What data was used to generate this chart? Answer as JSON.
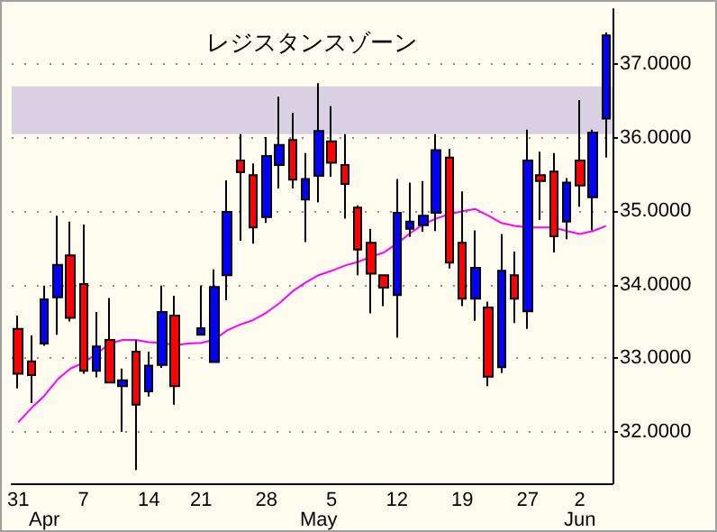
{
  "chart_data": {
    "type": "candlestick",
    "categories": [
      "31",
      null,
      "\nApr",
      null,
      null,
      "7",
      null,
      null,
      null,
      null,
      "14",
      null,
      null,
      null,
      "21",
      null,
      null,
      null,
      null,
      "28",
      null,
      null,
      null,
      "\nMay",
      "5",
      null,
      null,
      null,
      null,
      "12",
      null,
      null,
      null,
      null,
      "19",
      null,
      null,
      null,
      null,
      "27",
      null,
      null,
      null,
      "2\nJun",
      null,
      null
    ],
    "ohlc": [
      [
        33.4,
        33.58,
        32.59,
        32.79
      ],
      [
        32.96,
        33.31,
        32.39,
        32.77
      ],
      [
        33.2,
        33.99,
        33.17,
        33.8
      ],
      [
        33.83,
        34.94,
        33.32,
        34.27
      ],
      [
        34.4,
        34.86,
        33.5,
        33.55
      ],
      [
        34.01,
        34.82,
        32.79,
        32.83
      ],
      [
        32.83,
        33.63,
        32.74,
        33.16
      ],
      [
        33.25,
        33.82,
        32.67,
        32.67
      ],
      [
        32.62,
        32.86,
        32.0,
        32.7
      ],
      [
        33.09,
        33.25,
        31.48,
        32.37
      ],
      [
        32.55,
        33.09,
        32.48,
        32.9
      ],
      [
        32.91,
        33.99,
        32.87,
        33.63
      ],
      [
        33.58,
        33.85,
        32.37,
        32.62
      ],
      null,
      [
        33.32,
        33.99,
        33.32,
        33.41
      ],
      [
        32.95,
        34.21,
        32.95,
        33.97
      ],
      [
        34.13,
        35.42,
        33.79,
        34.99
      ],
      [
        35.69,
        36.05,
        34.6,
        35.53
      ],
      [
        35.49,
        35.65,
        34.56,
        34.78
      ],
      [
        34.92,
        36.01,
        34.84,
        35.75
      ],
      [
        35.63,
        36.56,
        35.31,
        35.9
      ],
      [
        35.97,
        36.34,
        35.31,
        35.43
      ],
      [
        35.16,
        35.79,
        34.58,
        35.44
      ],
      [
        35.48,
        36.74,
        35.12,
        36.09
      ],
      [
        35.95,
        36.43,
        35.47,
        35.66
      ],
      [
        35.63,
        36.05,
        34.9,
        35.37
      ],
      [
        35.05,
        35.08,
        34.13,
        34.48
      ],
      [
        34.57,
        34.76,
        33.61,
        34.15
      ],
      [
        34.13,
        34.13,
        33.71,
        33.96
      ],
      [
        33.86,
        35.44,
        33.28,
        34.98
      ],
      [
        34.76,
        35.39,
        34.65,
        34.86
      ],
      [
        34.81,
        35.41,
        34.72,
        34.94
      ],
      [
        34.98,
        36.05,
        34.73,
        35.83
      ],
      [
        35.73,
        35.85,
        34.22,
        34.3
      ],
      [
        34.57,
        35.27,
        33.71,
        33.81
      ],
      [
        33.81,
        34.74,
        33.51,
        34.23
      ],
      [
        33.69,
        33.77,
        32.62,
        32.75
      ],
      [
        32.88,
        34.69,
        32.8,
        34.19
      ],
      [
        34.13,
        34.45,
        33.48,
        33.81
      ],
      [
        33.64,
        36.11,
        33.4,
        35.69
      ],
      [
        35.49,
        35.81,
        34.88,
        35.41
      ],
      [
        35.54,
        35.79,
        34.44,
        34.66
      ],
      [
        34.86,
        35.45,
        34.62,
        35.39
      ],
      [
        35.69,
        36.51,
        35.06,
        35.35
      ],
      [
        35.19,
        36.11,
        34.74,
        36.07
      ],
      [
        36.26,
        37.43,
        35.73,
        37.39
      ]
    ],
    "colors": [
      "#ff0000",
      "#ff0000",
      "#0000ff",
      "#0000ff",
      "#ff0000",
      "#ff0000",
      "#0000ff",
      "#ff0000",
      "#0000ff",
      "#ff0000",
      "#0000ff",
      "#0000ff",
      "#ff0000",
      null,
      "#0000ff",
      "#0000ff",
      "#0000ff",
      "#ff0000",
      "#ff0000",
      "#0000ff",
      "#0000ff",
      "#ff0000",
      "#0000ff",
      "#0000ff",
      "#ff0000",
      "#ff0000",
      "#ff0000",
      "#ff0000",
      "#ff0000",
      "#0000ff",
      "#0000ff",
      "#0000ff",
      "#0000ff",
      "#ff0000",
      "#ff0000",
      "#0000ff",
      "#ff0000",
      "#0000ff",
      "#ff0000",
      "#0000ff",
      "#ff0000",
      "#ff0000",
      "#0000ff",
      "#ff0000",
      "#0000ff",
      "#0000ff"
    ],
    "series": [
      {
        "type": "line",
        "color": "#ff00ff",
        "values": [
          32.13,
          32.32,
          32.49,
          32.71,
          32.86,
          32.94,
          33.06,
          33.2,
          33.25,
          33.25,
          33.22,
          33.21,
          33.18,
          33.2,
          33.21,
          33.25,
          33.38,
          33.46,
          33.52,
          33.62,
          33.75,
          33.91,
          34.03,
          34.13,
          34.19,
          34.26,
          34.31,
          34.38,
          34.44,
          34.56,
          34.7,
          34.82,
          34.9,
          34.96,
          35.0,
          35.03,
          34.94,
          34.84,
          34.8,
          34.78,
          34.78,
          34.78,
          34.73,
          34.69,
          34.73,
          34.8
        ]
      }
    ],
    "marker": "none",
    "ylim": [
      31.3,
      37.75
    ],
    "yticks": [
      {
        "value": 32,
        "label": "32.0000"
      },
      {
        "value": 33,
        "label": "33.0000"
      },
      {
        "value": 34,
        "label": "34.0000"
      },
      {
        "value": 35,
        "label": "35.0000"
      },
      {
        "value": 36,
        "label": "36.0000"
      },
      {
        "value": 37,
        "label": "37.0000"
      }
    ],
    "grid": "y",
    "bands": [
      {
        "axis": "y",
        "from": 36.05,
        "to": 36.7,
        "label": "レジスタンスゾーン",
        "color": "#d9d1e3"
      }
    ]
  }
}
